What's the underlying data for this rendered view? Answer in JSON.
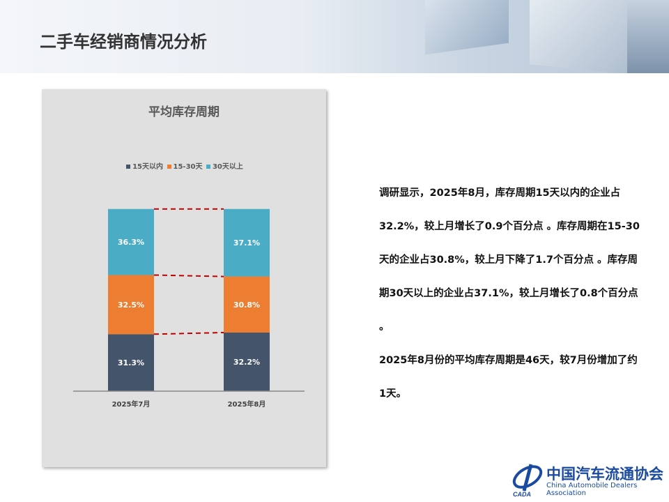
{
  "header": {
    "title": "二手车经销商情况分析"
  },
  "chart_data": {
    "type": "bar",
    "stacked": true,
    "title": "平均库存周期",
    "categories": [
      "2025年7月",
      "2025年8月"
    ],
    "series": [
      {
        "name": "15天以内",
        "color": "#44546a",
        "values": [
          31.3,
          32.2
        ],
        "labels": [
          "31.3%",
          "32.2%"
        ]
      },
      {
        "name": "15-30天",
        "color": "#ed7d31",
        "values": [
          32.5,
          30.8
        ],
        "labels": [
          "32.5%",
          "30.8%"
        ]
      },
      {
        "name": "30天以上",
        "color": "#4bacc6",
        "values": [
          36.3,
          37.1
        ],
        "labels": [
          "36.3%",
          "37.1%"
        ]
      }
    ],
    "ylim": [
      0,
      100
    ],
    "legend": "top",
    "grid": false,
    "connector_lines": "dashed",
    "connector_color": "#c00000"
  },
  "body": {
    "paragraphs": [
      "调研显示，2025年8月，库存周期15天以内的企业占32.2%，较上月增长了0.9个百分点 。库存周期在15-30天的企业占30.8%，较上月下降了1.7个百分点 。库存周期30天以上的企业占37.1%，较上月增长了0.8个百分点 。",
      "2025年8月份的平均库存周期是46天，较7月份增加了约1天。"
    ]
  },
  "logo": {
    "cn": "中国汽车流通协会",
    "en": "China Automobile Dealers Association",
    "mark": "CADA"
  }
}
